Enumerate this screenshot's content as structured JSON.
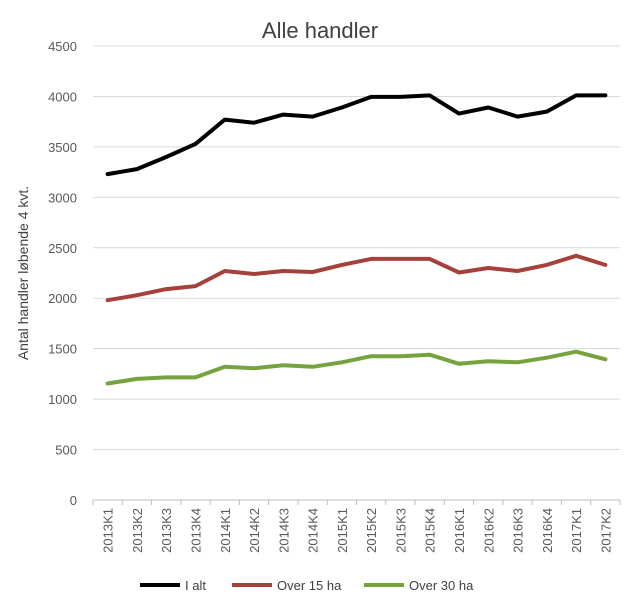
{
  "chart_data": {
    "type": "line",
    "title": "Alle handler",
    "xlabel": "",
    "ylabel": "Antal handler løbende 4 kvt.",
    "ylim": [
      0,
      4500
    ],
    "yticks": [
      0,
      500,
      1000,
      1500,
      2000,
      2500,
      3000,
      3500,
      4000,
      4500
    ],
    "grid": true,
    "legend_position": "bottom",
    "categories": [
      "2013K1",
      "2013K2",
      "2013K3",
      "2013K4",
      "2014K1",
      "2014K2",
      "2014K3",
      "2014K4",
      "2015K1",
      "2015K2",
      "2015K3",
      "2015K4",
      "2016K1",
      "2016K2",
      "2016K3",
      "2016K4",
      "2017K1",
      "2017K2"
    ],
    "series": [
      {
        "name": "I alt",
        "color": "#000000",
        "values": [
          3230,
          3280,
          3400,
          3530,
          3770,
          3740,
          3820,
          3800,
          3890,
          3995,
          3995,
          4010,
          3830,
          3890,
          3800,
          3850,
          4010,
          4010
        ]
      },
      {
        "name": "Over 15 ha",
        "color": "#a5403a",
        "values": [
          1980,
          2030,
          2090,
          2120,
          2270,
          2240,
          2270,
          2260,
          2330,
          2390,
          2390,
          2390,
          2255,
          2300,
          2270,
          2330,
          2420,
          2330
        ]
      },
      {
        "name": "Over 30 ha",
        "color": "#77a33f",
        "values": [
          1155,
          1200,
          1215,
          1215,
          1320,
          1305,
          1335,
          1320,
          1365,
          1425,
          1425,
          1440,
          1350,
          1375,
          1365,
          1410,
          1470,
          1395
        ]
      }
    ]
  }
}
